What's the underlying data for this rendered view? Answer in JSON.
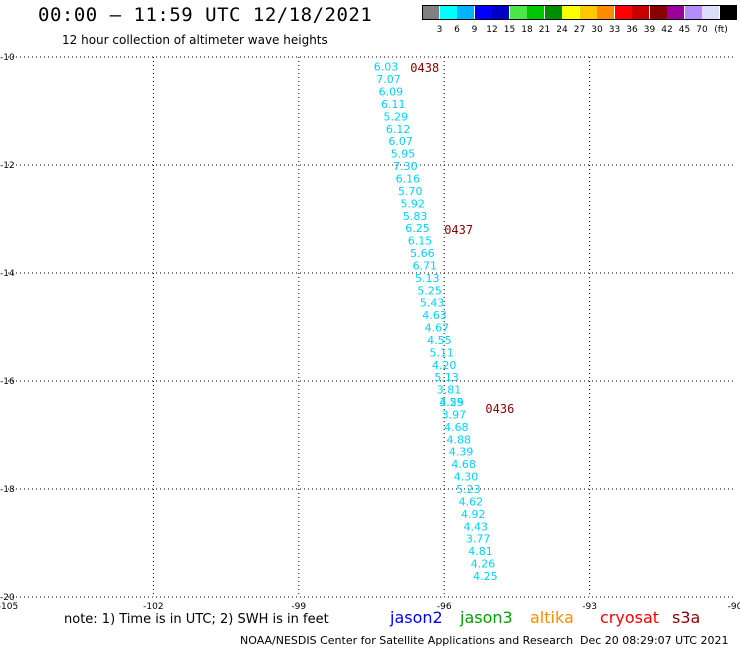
{
  "header": {
    "title": "00:00 – 11:59 UTC 12/18/2021",
    "subtitle": "12 hour collection of altimeter wave heights"
  },
  "legend": {
    "unit": "(ft)",
    "colors": [
      "#808080",
      "#00ffff",
      "#00b4ff",
      "#0000ff",
      "#0000c8",
      "#4ce64c",
      "#00c800",
      "#008c00",
      "#ffff00",
      "#ffc800",
      "#ff8c00",
      "#ff0000",
      "#c80000",
      "#8b0000",
      "#9b009b",
      "#b48cff",
      "#dcdcff",
      "#000000"
    ],
    "labels": [
      "3",
      "6",
      "9",
      "12",
      "15",
      "18",
      "21",
      "24",
      "27",
      "30",
      "33",
      "36",
      "39",
      "42",
      "45",
      "70"
    ]
  },
  "map": {
    "lon_range": [
      -105,
      -90
    ],
    "lat_range": [
      -20,
      -10
    ],
    "lon_ticks": [
      "-105",
      "-102",
      "-99",
      "-96",
      "-93",
      "-90"
    ],
    "lat_ticks": [
      "-10",
      "-12",
      "-14",
      "-16",
      "-18",
      "-20"
    ],
    "grid": "dotted",
    "track": [
      {
        "lon": -97.2,
        "lat": -10.18,
        "swh": "6.03"
      },
      {
        "lon": -97.15,
        "lat": -10.41,
        "swh": "7.07"
      },
      {
        "lon": -97.1,
        "lat": -10.64,
        "swh": "6.09"
      },
      {
        "lon": -97.05,
        "lat": -10.87,
        "swh": "6.11"
      },
      {
        "lon": -97.0,
        "lat": -11.1,
        "swh": "5.29"
      },
      {
        "lon": -96.95,
        "lat": -11.33,
        "swh": "6.12"
      },
      {
        "lon": -96.9,
        "lat": -11.56,
        "swh": "6.07"
      },
      {
        "lon": -96.85,
        "lat": -11.79,
        "swh": "5.95"
      },
      {
        "lon": -96.8,
        "lat": -12.02,
        "swh": "7.30"
      },
      {
        "lon": -96.75,
        "lat": -12.25,
        "swh": "6.16"
      },
      {
        "lon": -96.7,
        "lat": -12.48,
        "swh": "5.70"
      },
      {
        "lon": -96.65,
        "lat": -12.71,
        "swh": "5.92"
      },
      {
        "lon": -96.6,
        "lat": -12.94,
        "swh": "5.83"
      },
      {
        "lon": -96.55,
        "lat": -13.17,
        "swh": "6.25"
      },
      {
        "lon": -96.5,
        "lat": -13.4,
        "swh": "6.15"
      },
      {
        "lon": -96.45,
        "lat": -13.63,
        "swh": "5.66"
      },
      {
        "lon": -96.4,
        "lat": -13.86,
        "swh": "6.71"
      },
      {
        "lon": -96.35,
        "lat": -14.09,
        "swh": "5.13"
      },
      {
        "lon": -96.3,
        "lat": -14.32,
        "swh": "5.25"
      },
      {
        "lon": -96.25,
        "lat": -14.55,
        "swh": "5.43"
      },
      {
        "lon": -96.2,
        "lat": -14.78,
        "swh": "4.63"
      },
      {
        "lon": -96.15,
        "lat": -15.01,
        "swh": "4.67"
      },
      {
        "lon": -96.1,
        "lat": -15.24,
        "swh": "4.55"
      },
      {
        "lon": -96.05,
        "lat": -15.47,
        "swh": "5.11"
      },
      {
        "lon": -96.0,
        "lat": -15.7,
        "swh": "4.20"
      },
      {
        "lon": -95.95,
        "lat": -15.93,
        "swh": "5.13"
      },
      {
        "lon": -95.9,
        "lat": -16.16,
        "swh": "3.81"
      },
      {
        "lon": -95.85,
        "lat": -16.39,
        "swh": "4.25"
      },
      {
        "lon": -95.85,
        "lat": -16.39,
        "swh": "3.59"
      },
      {
        "lon": -95.8,
        "lat": -16.62,
        "swh": "3.97"
      },
      {
        "lon": -95.75,
        "lat": -16.85,
        "swh": "4.68"
      },
      {
        "lon": -95.7,
        "lat": -17.08,
        "swh": "4.88"
      },
      {
        "lon": -95.65,
        "lat": -17.31,
        "swh": "4.39"
      },
      {
        "lon": -95.6,
        "lat": -17.54,
        "swh": "4.68"
      },
      {
        "lon": -95.55,
        "lat": -17.77,
        "swh": "4.30"
      },
      {
        "lon": -95.5,
        "lat": -18.0,
        "swh": "5.23"
      },
      {
        "lon": -95.45,
        "lat": -18.23,
        "swh": "4.62"
      },
      {
        "lon": -95.4,
        "lat": -18.46,
        "swh": "4.92"
      },
      {
        "lon": -95.35,
        "lat": -18.69,
        "swh": "4.43"
      },
      {
        "lon": -95.3,
        "lat": -18.92,
        "swh": "3.77"
      },
      {
        "lon": -95.25,
        "lat": -19.15,
        "swh": "4.81"
      },
      {
        "lon": -95.2,
        "lat": -19.38,
        "swh": "4.26"
      },
      {
        "lon": -95.15,
        "lat": -19.61,
        "swh": "4.25"
      }
    ],
    "time_labels": [
      {
        "lon": -96.7,
        "lat": -10.2,
        "text": "0438"
      },
      {
        "lon": -96.0,
        "lat": -13.2,
        "text": "0437"
      },
      {
        "lon": -95.15,
        "lat": -16.52,
        "text": "0436"
      }
    ]
  },
  "note": "note: 1) Time is in UTC; 2) SWH is in feet",
  "satellites": [
    {
      "name": "jason2",
      "color": "#0000ff"
    },
    {
      "name": "jason3",
      "color": "#00a000"
    },
    {
      "name": "altika",
      "color": "#ff8c00"
    },
    {
      "name": "cryosat",
      "color": "#ff0000"
    },
    {
      "name": "s3a",
      "color": "#8b0000"
    }
  ],
  "footer": {
    "credit": "NOAA/NESDIS Center for Satellite Applications and Research",
    "timestamp": "Dec 20 08:29:07 UTC 2021"
  }
}
